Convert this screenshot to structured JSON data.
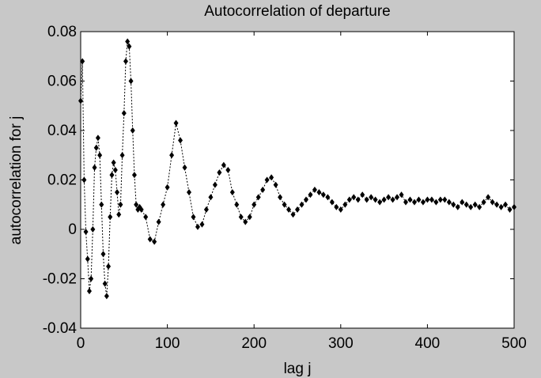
{
  "chart_data": {
    "type": "line",
    "title": "Autocorrelation of departure",
    "xlabel": "lag  j",
    "ylabel": "autocorrelation  for  j",
    "x": [
      0,
      2,
      4,
      6,
      8,
      10,
      12,
      14,
      16,
      18,
      20,
      22,
      24,
      26,
      28,
      30,
      32,
      34,
      36,
      38,
      40,
      42,
      44,
      46,
      48,
      50,
      52,
      54,
      56,
      58,
      60,
      62,
      64,
      66,
      68,
      70,
      75,
      80,
      85,
      90,
      95,
      100,
      105,
      110,
      115,
      120,
      125,
      130,
      135,
      140,
      145,
      150,
      155,
      160,
      165,
      170,
      175,
      180,
      185,
      190,
      195,
      200,
      205,
      210,
      215,
      220,
      225,
      230,
      235,
      240,
      245,
      250,
      255,
      260,
      265,
      270,
      275,
      280,
      285,
      290,
      295,
      300,
      305,
      310,
      315,
      320,
      325,
      330,
      335,
      340,
      345,
      350,
      355,
      360,
      365,
      370,
      375,
      380,
      385,
      390,
      395,
      400,
      405,
      410,
      415,
      420,
      425,
      430,
      435,
      440,
      445,
      450,
      455,
      460,
      465,
      470,
      475,
      480,
      485,
      490,
      495,
      500
    ],
    "series": [
      {
        "color": "#000000",
        "values": [
          0.052,
          0.068,
          0.02,
          -0.001,
          -0.012,
          -0.025,
          -0.02,
          0.0,
          0.025,
          0.033,
          0.037,
          0.03,
          0.01,
          -0.01,
          -0.022,
          -0.027,
          -0.015,
          0.005,
          0.022,
          0.027,
          0.024,
          0.015,
          0.006,
          0.01,
          0.03,
          0.047,
          0.068,
          0.076,
          0.074,
          0.06,
          0.04,
          0.022,
          0.01,
          0.008,
          0.009,
          0.008,
          0.005,
          -0.004,
          -0.005,
          0.003,
          0.01,
          0.017,
          0.03,
          0.043,
          0.036,
          0.025,
          0.015,
          0.005,
          0.001,
          0.002,
          0.008,
          0.013,
          0.018,
          0.023,
          0.026,
          0.024,
          0.015,
          0.01,
          0.005,
          0.003,
          0.005,
          0.01,
          0.013,
          0.016,
          0.02,
          0.021,
          0.018,
          0.013,
          0.01,
          0.008,
          0.006,
          0.008,
          0.01,
          0.012,
          0.014,
          0.016,
          0.015,
          0.014,
          0.013,
          0.011,
          0.009,
          0.008,
          0.01,
          0.012,
          0.013,
          0.012,
          0.014,
          0.012,
          0.013,
          0.012,
          0.011,
          0.012,
          0.013,
          0.012,
          0.013,
          0.014,
          0.011,
          0.012,
          0.011,
          0.012,
          0.011,
          0.012,
          0.012,
          0.011,
          0.012,
          0.012,
          0.011,
          0.01,
          0.009,
          0.011,
          0.01,
          0.009,
          0.01,
          0.009,
          0.011,
          0.013,
          0.011,
          0.01,
          0.009,
          0.01,
          0.008,
          0.009
        ]
      }
    ],
    "xlim": [
      0,
      500
    ],
    "xticks": [
      0,
      100,
      200,
      300,
      400,
      500
    ],
    "ylim": [
      -0.04,
      0.08
    ],
    "yticks": [
      -0.04,
      -0.02,
      0,
      0.02,
      0.04,
      0.06,
      0.08
    ]
  }
}
